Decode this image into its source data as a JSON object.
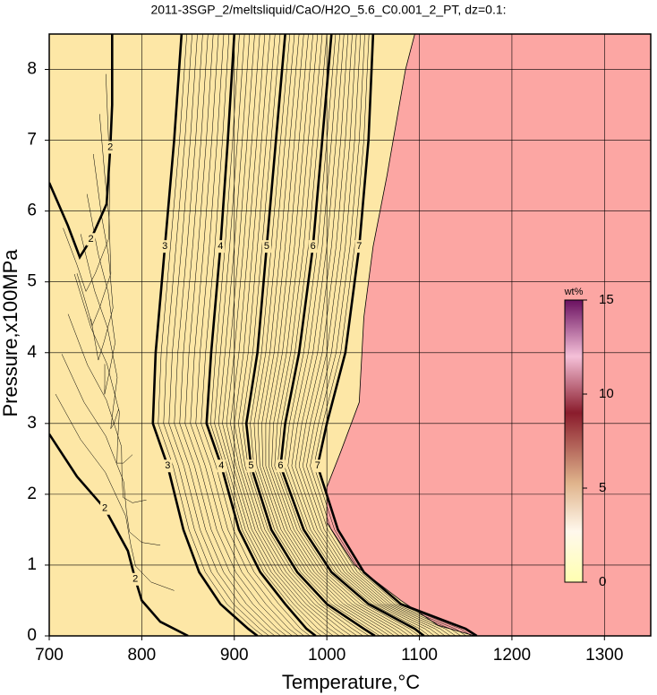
{
  "chart_data": {
    "type": "contour",
    "title": "2011-3SGP_2/meltsliquid/CaO/H2O_5.6_C0.001_2_PT, dz=0.1:",
    "xlabel": "Temperature,°C",
    "ylabel": "Pressure,x100MPa",
    "xlim": [
      700,
      1350
    ],
    "xticks": [
      700,
      800,
      900,
      1000,
      1100,
      1200,
      1300
    ],
    "ylim": [
      0,
      8.5
    ],
    "yticks": [
      0,
      1,
      2,
      3,
      4,
      5,
      6,
      7,
      8
    ],
    "grid": true,
    "background_color": "#fde7a6",
    "boundary": {
      "color": "#fca6a3",
      "x": [
        1095,
        1085,
        1065,
        1050,
        1040,
        1035,
        1015,
        1000,
        1000,
        1030,
        1080,
        1120,
        1160
      ],
      "y": [
        8.5,
        8,
        6.5,
        5.5,
        4.5,
        3.3,
        2.6,
        2.1,
        1.6,
        1,
        0.5,
        0.15,
        0
      ]
    },
    "contours": [
      {
        "level": 2,
        "x": [
          768,
          768,
          766,
          762,
          745,
          733,
          720,
          700
        ],
        "y": [
          8.5,
          7.5,
          6.9,
          6.1,
          5.6,
          5.35,
          5.8,
          6.4
        ]
      },
      {
        "level": 2,
        "x": [
          700,
          730,
          760,
          785,
          793,
          800,
          820,
          850
        ],
        "y": [
          2.85,
          2.25,
          1.8,
          1.2,
          0.8,
          0.5,
          0.2,
          0
        ]
      },
      {
        "level": 3,
        "x": [
          843,
          835,
          825,
          815,
          812,
          828,
          845,
          862,
          885,
          915,
          925
        ],
        "y": [
          8.5,
          7,
          5.5,
          4,
          3,
          2.4,
          1.5,
          0.9,
          0.45,
          0.1,
          0
        ]
      },
      {
        "level": 4,
        "x": [
          900,
          893,
          885,
          875,
          870,
          886,
          905,
          928,
          955,
          978,
          988
        ],
        "y": [
          8.5,
          7,
          5.5,
          4,
          3,
          2.4,
          1.5,
          0.9,
          0.45,
          0.1,
          0
        ]
      },
      {
        "level": 5,
        "x": [
          955,
          945,
          935,
          925,
          913,
          918,
          940,
          968,
          1000,
          1040,
          1052
        ],
        "y": [
          8.5,
          7,
          5.5,
          4,
          3,
          2.4,
          1.5,
          0.9,
          0.45,
          0.1,
          0
        ]
      },
      {
        "level": 6,
        "x": [
          1005,
          995,
          985,
          970,
          955,
          950,
          975,
          1005,
          1045,
          1095,
          1105
        ],
        "y": [
          8.5,
          7,
          5.5,
          4,
          3,
          2.4,
          1.5,
          0.9,
          0.45,
          0.1,
          0
        ]
      },
      {
        "level": 7,
        "x": [
          1050,
          1045,
          1035,
          1020,
          1000,
          990,
          1012,
          1040,
          1080,
          1150,
          1162
        ],
        "y": [
          8.5,
          7,
          5.5,
          4,
          3,
          2.4,
          1.5,
          0.9,
          0.45,
          0.1,
          0
        ]
      }
    ],
    "colorbar": {
      "label": "wt%",
      "lim": [
        0,
        15
      ],
      "ticks": [
        0,
        5,
        10,
        15
      ]
    }
  }
}
